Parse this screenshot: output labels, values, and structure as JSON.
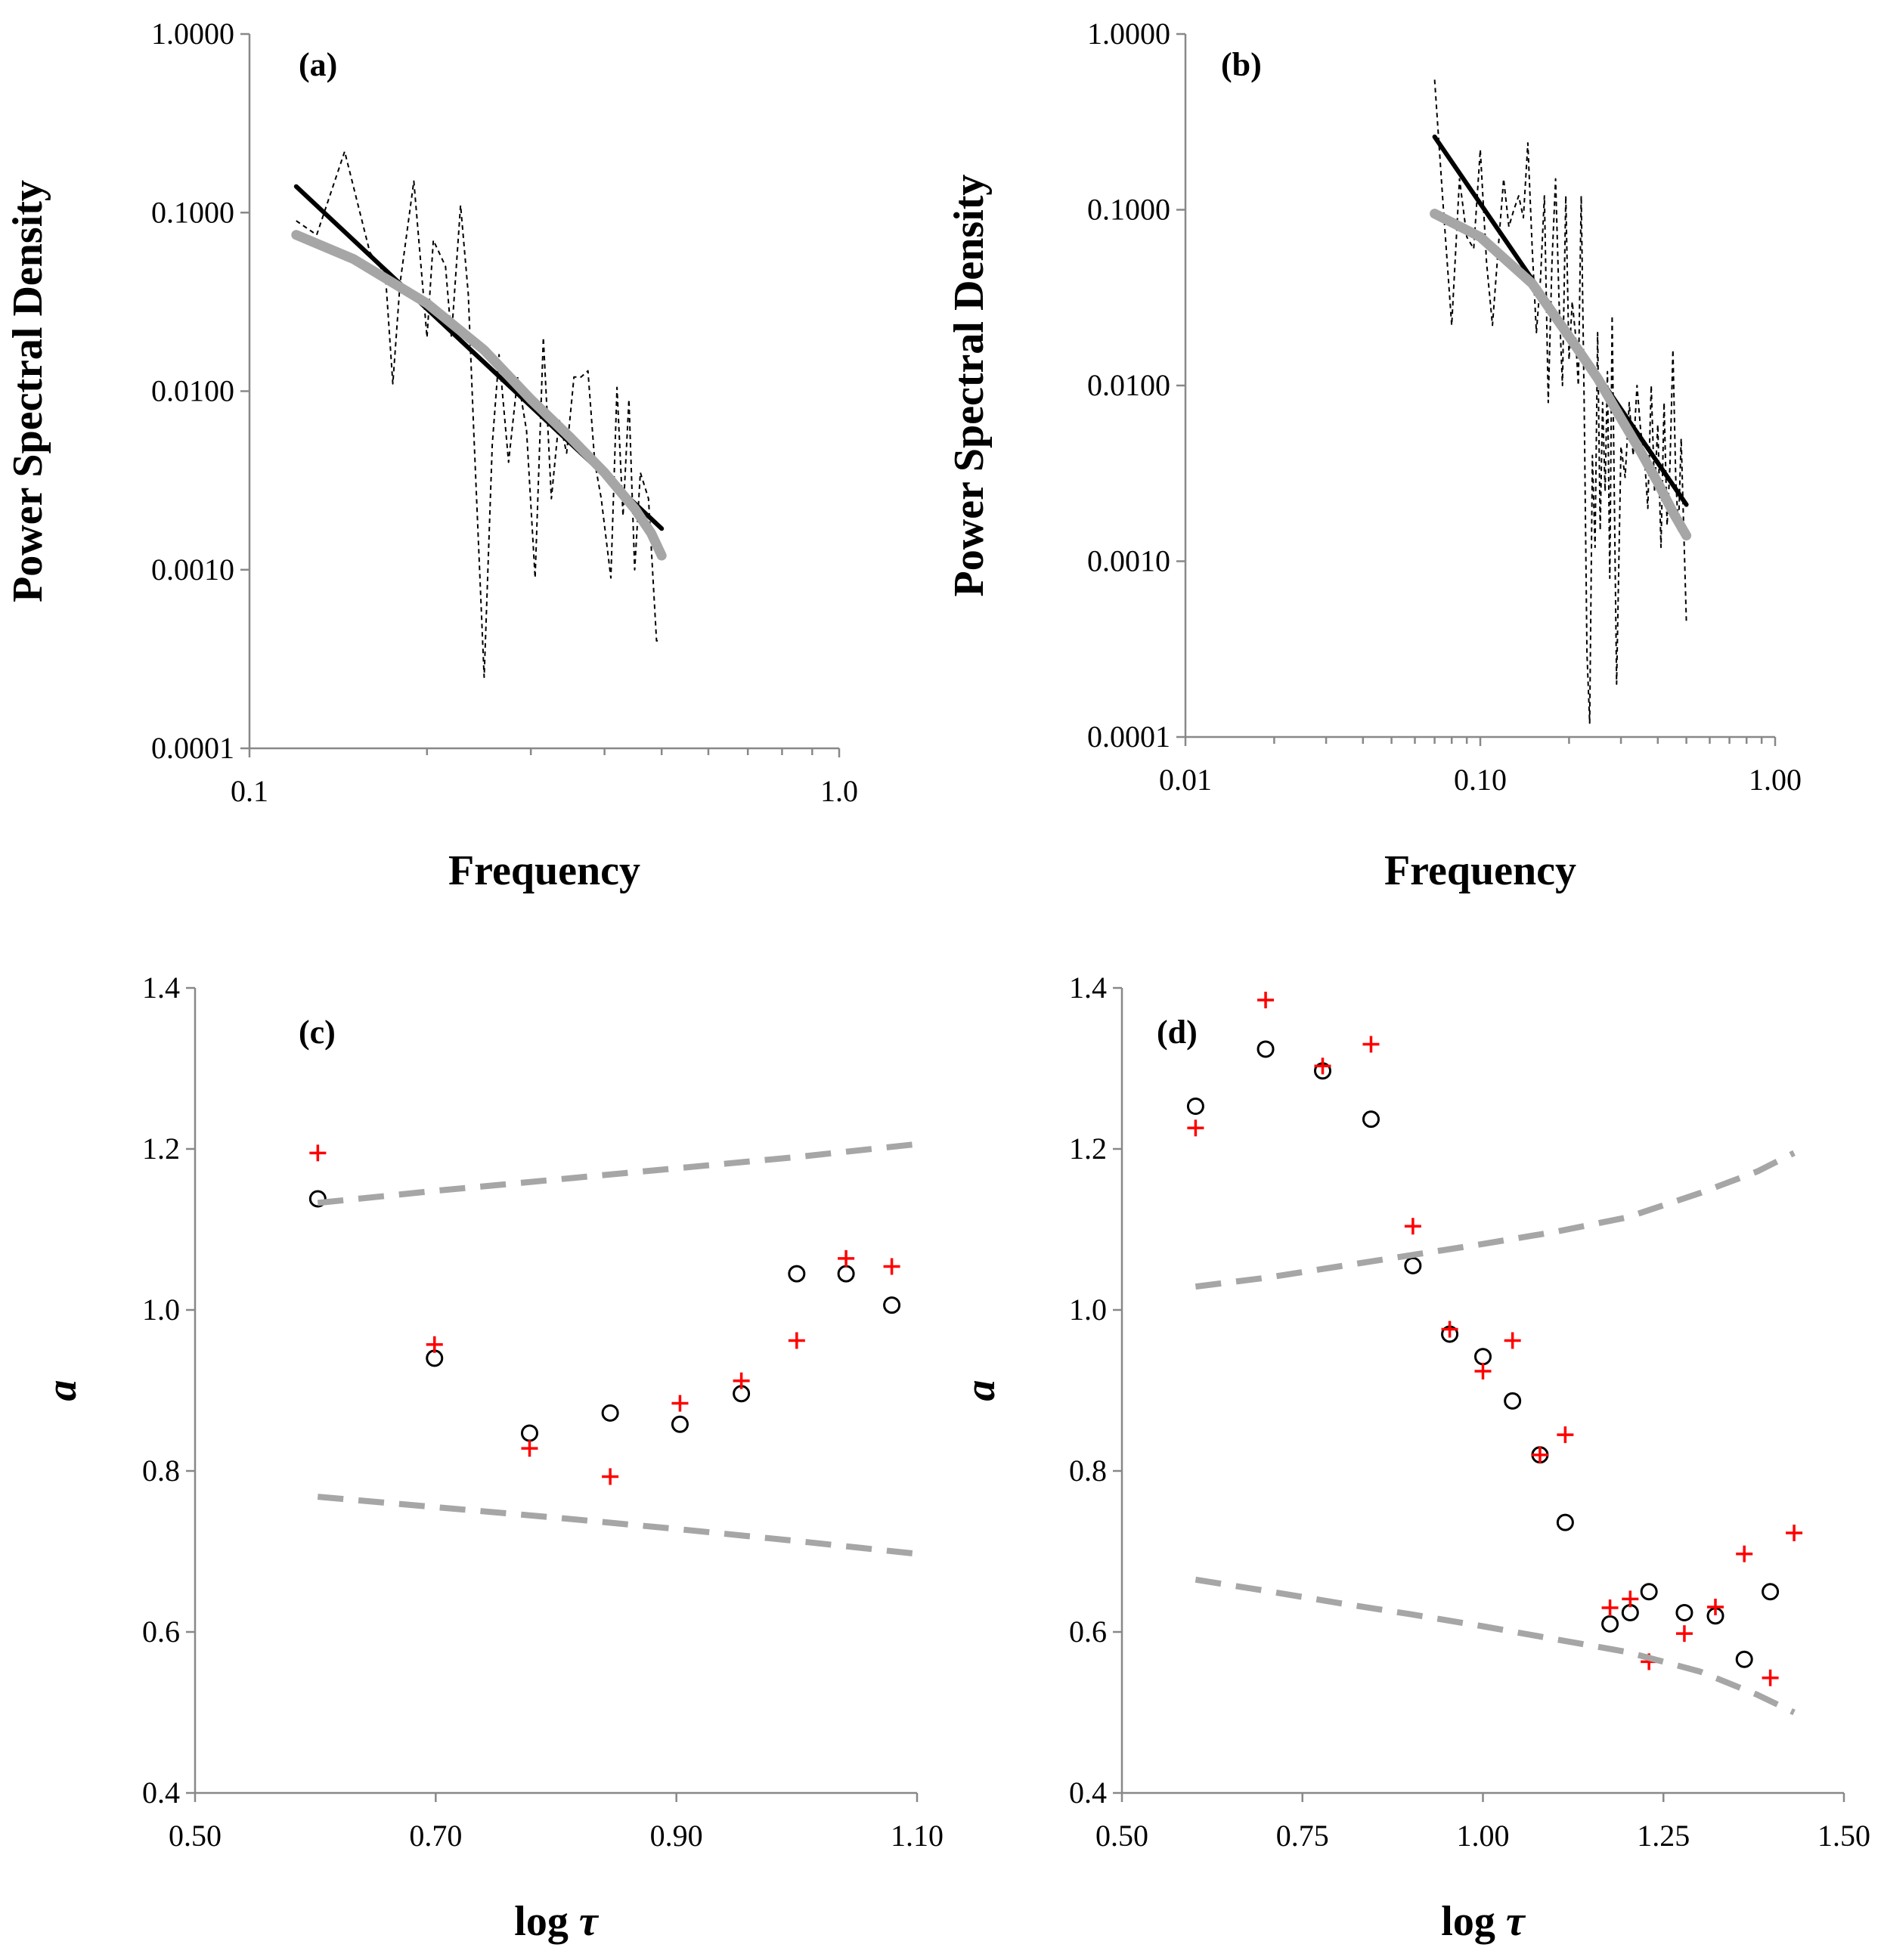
{
  "chart_data": [
    {
      "id": "a",
      "type": "line",
      "panel_label": "(a)",
      "xscale": "log",
      "yscale": "log",
      "xlim": [
        0.1,
        1.0
      ],
      "ylim": [
        0.0001,
        1.0
      ],
      "xticks": [
        0.1,
        1.0
      ],
      "xtick_labels": [
        "0.1",
        "1.0"
      ],
      "yticks": [
        0.0001,
        0.001,
        0.01,
        0.1,
        1.0
      ],
      "ytick_labels": [
        "0.0001",
        "0.0010",
        "0.0100",
        "0.1000",
        "1.0000"
      ],
      "xlabel": "Frequency",
      "ylabel": "Power Spectral Density",
      "series": [
        {
          "name": "periodogram",
          "style": "dashed",
          "color": "#000000",
          "x": [
            0.12,
            0.13,
            0.145,
            0.16,
            0.17,
            0.175,
            0.18,
            0.19,
            0.2,
            0.205,
            0.215,
            0.22,
            0.228,
            0.235,
            0.24,
            0.25,
            0.258,
            0.265,
            0.275,
            0.285,
            0.295,
            0.305,
            0.315,
            0.325,
            0.335,
            0.345,
            0.355,
            0.365,
            0.375,
            0.385,
            0.395,
            0.41,
            0.42,
            0.43,
            0.44,
            0.45,
            0.46,
            0.475,
            0.49,
            0.5
          ],
          "y": [
            0.09,
            0.075,
            0.22,
            0.06,
            0.045,
            0.011,
            0.04,
            0.15,
            0.02,
            0.07,
            0.05,
            0.02,
            0.11,
            0.035,
            0.006,
            0.00025,
            0.005,
            0.016,
            0.004,
            0.012,
            0.006,
            0.0009,
            0.02,
            0.0025,
            0.007,
            0.0045,
            0.012,
            0.012,
            0.013,
            0.004,
            0.0025,
            0.0009,
            0.0105,
            0.002,
            0.009,
            0.001,
            0.0035,
            0.0025,
            0.0004,
            0.0004
          ]
        },
        {
          "name": "power-law fit",
          "style": "solid",
          "color": "#000000",
          "x": [
            0.12,
            0.5
          ],
          "y": [
            0.14,
            0.0017
          ]
        },
        {
          "name": "curved fit",
          "style": "solid-thick",
          "color": "#a6a6a6",
          "x": [
            0.12,
            0.15,
            0.2,
            0.25,
            0.3,
            0.35,
            0.4,
            0.45,
            0.48,
            0.5
          ],
          "y": [
            0.075,
            0.055,
            0.031,
            0.017,
            0.009,
            0.0055,
            0.0035,
            0.0022,
            0.0016,
            0.0012
          ]
        }
      ]
    },
    {
      "id": "b",
      "type": "line",
      "panel_label": "(b)",
      "xscale": "log",
      "yscale": "log",
      "xlim": [
        0.01,
        1.0
      ],
      "ylim": [
        0.0001,
        1.0
      ],
      "xticks": [
        0.01,
        0.1,
        1.0
      ],
      "xtick_labels": [
        "0.01",
        "0.10",
        "1.00"
      ],
      "yticks": [
        0.0001,
        0.001,
        0.01,
        0.1,
        1.0
      ],
      "ytick_labels": [
        "0.0001",
        "0.0010",
        "0.0100",
        "0.1000",
        "1.0000"
      ],
      "xlabel": "Frequency",
      "ylabel": "Power Spectral Density",
      "series": [
        {
          "name": "periodogram",
          "style": "dashed",
          "color": "#000000",
          "x": [
            0.07,
            0.075,
            0.08,
            0.085,
            0.09,
            0.095,
            0.1,
            0.105,
            0.11,
            0.115,
            0.12,
            0.125,
            0.13,
            0.135,
            0.14,
            0.145,
            0.15,
            0.155,
            0.16,
            0.165,
            0.17,
            0.175,
            0.18,
            0.185,
            0.19,
            0.195,
            0.2,
            0.205,
            0.21,
            0.215,
            0.22,
            0.225,
            0.23,
            0.235,
            0.24,
            0.245,
            0.25,
            0.255,
            0.26,
            0.265,
            0.27,
            0.275,
            0.28,
            0.29,
            0.3,
            0.31,
            0.32,
            0.33,
            0.34,
            0.35,
            0.36,
            0.37,
            0.38,
            0.39,
            0.4,
            0.41,
            0.42,
            0.43,
            0.44,
            0.45,
            0.46,
            0.47,
            0.48,
            0.5
          ],
          "y": [
            0.55,
            0.1,
            0.022,
            0.15,
            0.07,
            0.06,
            0.22,
            0.05,
            0.022,
            0.06,
            0.15,
            0.08,
            0.1,
            0.12,
            0.09,
            0.24,
            0.06,
            0.02,
            0.04,
            0.12,
            0.008,
            0.05,
            0.15,
            0.03,
            0.01,
            0.12,
            0.014,
            0.03,
            0.02,
            0.01,
            0.12,
            0.008,
            0.0003,
            0.00012,
            0.004,
            0.0012,
            0.02,
            0.0015,
            0.008,
            0.0025,
            0.012,
            0.0008,
            0.025,
            0.0002,
            0.0045,
            0.003,
            0.008,
            0.004,
            0.01,
            0.0055,
            0.004,
            0.002,
            0.01,
            0.0025,
            0.006,
            0.0012,
            0.008,
            0.0016,
            0.0035,
            0.016,
            0.003,
            0.0015,
            0.005,
            0.00045
          ]
        },
        {
          "name": "power-law fit",
          "style": "solid",
          "color": "#000000",
          "x": [
            0.07,
            0.5
          ],
          "y": [
            0.26,
            0.0021
          ]
        },
        {
          "name": "curved fit",
          "style": "solid-thick",
          "color": "#a6a6a6",
          "x": [
            0.07,
            0.1,
            0.15,
            0.2,
            0.25,
            0.3,
            0.35,
            0.4,
            0.45,
            0.5
          ],
          "y": [
            0.095,
            0.07,
            0.038,
            0.019,
            0.011,
            0.0065,
            0.0042,
            0.0028,
            0.0019,
            0.0014
          ]
        }
      ]
    },
    {
      "id": "c",
      "type": "scatter",
      "panel_label": "(c)",
      "xlim": [
        0.5,
        1.1
      ],
      "ylim": [
        0.4,
        1.4
      ],
      "xticks": [
        0.5,
        0.7,
        0.9,
        1.1
      ],
      "xtick_labels": [
        "0.50",
        "0.70",
        "0.90",
        "1.10"
      ],
      "yticks": [
        0.4,
        0.6,
        0.8,
        1.0,
        1.2,
        1.4
      ],
      "ytick_labels": [
        "0.4",
        "0.6",
        "0.8",
        "1.0",
        "1.2",
        "1.4"
      ],
      "xlabel_main": "log",
      "xlabel_symbol": "τ",
      "ylabel": "a",
      "series": [
        {
          "name": "circles",
          "marker": "circle",
          "color": "#000000",
          "x": [
            0.602,
            0.699,
            0.778,
            0.845,
            0.903,
            0.954,
            1.0,
            1.041,
            1.079
          ],
          "y": [
            1.138,
            0.94,
            0.847,
            0.872,
            0.858,
            0.896,
            1.045,
            1.045,
            1.006
          ]
        },
        {
          "name": "crosses",
          "marker": "plus",
          "color": "#ff0000",
          "x": [
            0.602,
            0.699,
            0.778,
            0.845,
            0.903,
            0.954,
            1.0,
            1.041,
            1.079
          ],
          "y": [
            1.195,
            0.957,
            0.828,
            0.793,
            0.884,
            0.912,
            0.962,
            1.064,
            1.054
          ]
        },
        {
          "name": "upper bound",
          "style": "dashed",
          "color": "#a6a6a6",
          "x": [
            0.602,
            0.7,
            0.8,
            0.9,
            1.0,
            1.1
          ],
          "y": [
            1.133,
            1.148,
            1.162,
            1.176,
            1.19,
            1.206
          ]
        },
        {
          "name": "lower bound",
          "style": "dashed",
          "color": "#a6a6a6",
          "x": [
            0.602,
            0.7,
            0.8,
            0.9,
            1.0,
            1.1
          ],
          "y": [
            0.768,
            0.755,
            0.742,
            0.728,
            0.713,
            0.697
          ]
        }
      ]
    },
    {
      "id": "d",
      "type": "scatter",
      "panel_label": "(d)",
      "xlim": [
        0.5,
        1.5
      ],
      "ylim": [
        0.4,
        1.4
      ],
      "xticks": [
        0.5,
        0.75,
        1.0,
        1.25,
        1.5
      ],
      "xtick_labels": [
        "0.50",
        "0.75",
        "1.00",
        "1.25",
        "1.50"
      ],
      "yticks": [
        0.4,
        0.6,
        0.8,
        1.0,
        1.2,
        1.4
      ],
      "ytick_labels": [
        "0.4",
        "0.6",
        "0.8",
        "1.0",
        "1.2",
        "1.4"
      ],
      "xlabel_main": "log",
      "xlabel_symbol": "τ",
      "ylabel": "a",
      "series": [
        {
          "name": "circles",
          "marker": "circle",
          "color": "#000000",
          "x": [
            0.602,
            0.699,
            0.778,
            0.845,
            0.903,
            0.954,
            1.0,
            1.041,
            1.079,
            1.114,
            1.176,
            1.204,
            1.23,
            1.279,
            1.322,
            1.362,
            1.398
          ],
          "y": [
            1.253,
            1.324,
            1.297,
            1.237,
            1.055,
            0.97,
            0.942,
            0.887,
            0.82,
            0.736,
            0.61,
            0.624,
            0.65,
            0.624,
            0.62,
            0.566,
            0.65
          ]
        },
        {
          "name": "crosses",
          "marker": "plus",
          "color": "#ff0000",
          "x": [
            0.602,
            0.699,
            0.778,
            0.845,
            0.903,
            0.954,
            1.0,
            1.041,
            1.079,
            1.114,
            1.176,
            1.204,
            1.23,
            1.279,
            1.322,
            1.362,
            1.398,
            1.431
          ],
          "y": [
            1.226,
            1.385,
            1.303,
            1.33,
            1.104,
            0.976,
            0.924,
            0.962,
            0.82,
            0.845,
            0.63,
            0.641,
            0.563,
            0.598,
            0.631,
            0.697,
            0.543,
            0.723
          ]
        },
        {
          "name": "upper bound",
          "style": "dashed",
          "color": "#a6a6a6",
          "x": [
            0.602,
            0.7,
            0.8,
            0.9,
            1.0,
            1.1,
            1.2,
            1.3,
            1.38,
            1.431
          ],
          "y": [
            1.029,
            1.04,
            1.054,
            1.068,
            1.082,
            1.097,
            1.115,
            1.145,
            1.172,
            1.195
          ]
        },
        {
          "name": "lower bound",
          "style": "dashed",
          "color": "#a6a6a6",
          "x": [
            0.602,
            0.7,
            0.8,
            0.9,
            1.0,
            1.1,
            1.2,
            1.3,
            1.38,
            1.431
          ],
          "y": [
            0.665,
            0.651,
            0.636,
            0.622,
            0.607,
            0.591,
            0.575,
            0.551,
            0.522,
            0.5
          ]
        }
      ]
    }
  ]
}
